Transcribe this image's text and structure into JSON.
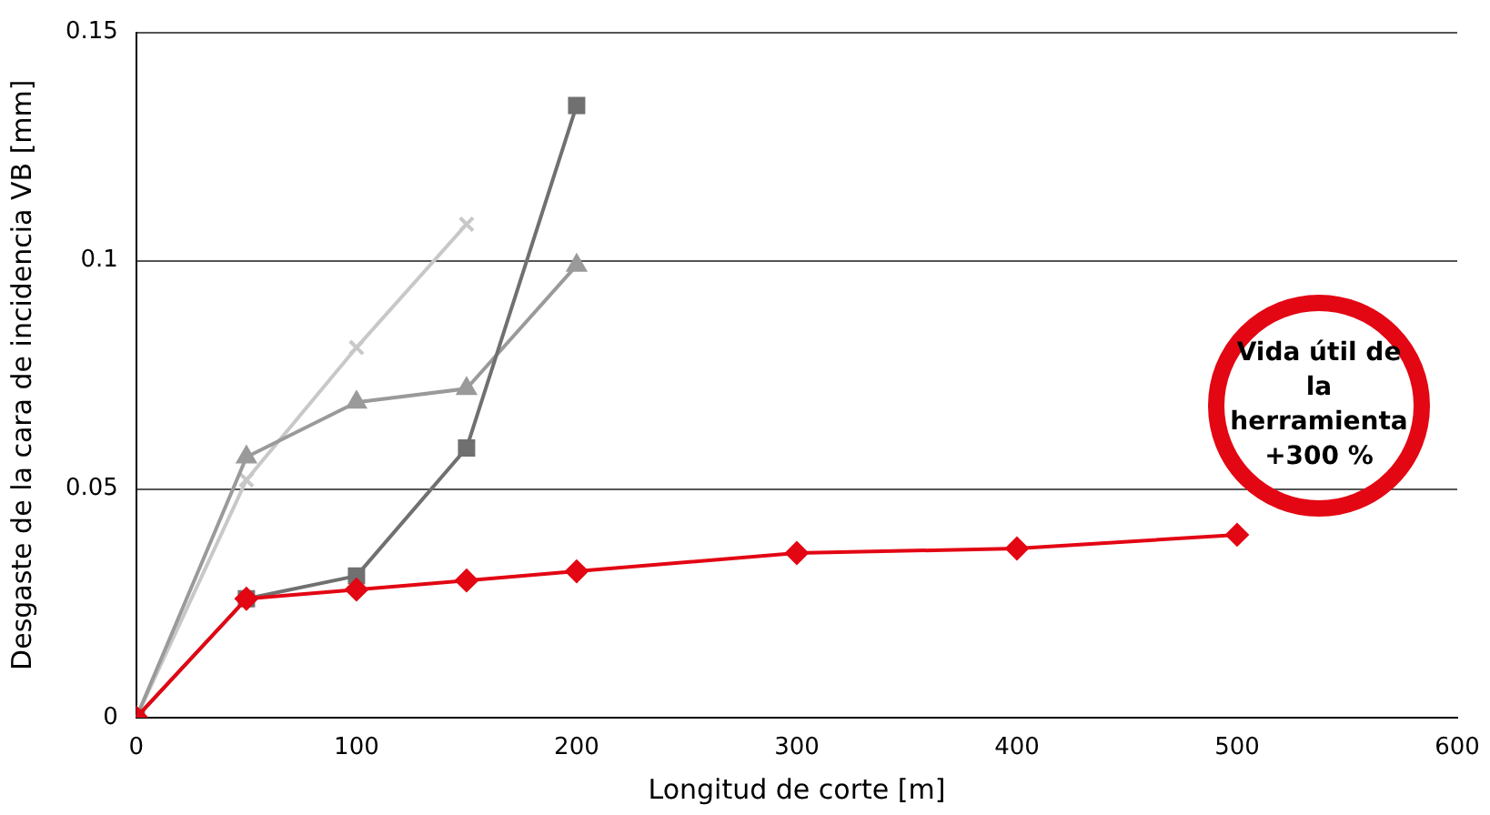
{
  "chart_data": {
    "type": "line",
    "xlabel": "Longitud de corte [m]",
    "ylabel": "Desgaste de la cara de incidencia VB [mm]",
    "xlim": [
      0,
      600
    ],
    "xticks": [
      0,
      100,
      200,
      300,
      400,
      500,
      600
    ],
    "ylim": [
      0,
      0.15
    ],
    "yticks": [
      0,
      0.05,
      0.1,
      0.15
    ],
    "grid": "y",
    "legend": false,
    "line_style": "solid",
    "annotations": [
      "Vida útil de la herramienta +300 %"
    ],
    "series": [
      {
        "color": "#c8c8c8",
        "marker": "cross",
        "x": [
          0,
          50,
          100,
          150
        ],
        "values": [
          0,
          0.052,
          0.081,
          0.108
        ]
      },
      {
        "color": "#9a9a9a",
        "marker": "triangle",
        "x": [
          0,
          50,
          100,
          150,
          200
        ],
        "values": [
          0,
          0.057,
          0.069,
          0.072,
          0.099
        ]
      },
      {
        "color": "#707070",
        "marker": "square",
        "x": [
          0,
          50,
          100,
          150,
          200
        ],
        "values": [
          0,
          0.026,
          0.031,
          0.059,
          0.134
        ]
      },
      {
        "color": "#e30613",
        "marker": "diamond",
        "x": [
          0,
          50,
          100,
          150,
          200,
          300,
          400,
          500
        ],
        "values": [
          0,
          0.026,
          0.028,
          0.03,
          0.032,
          0.036,
          0.037,
          0.04
        ]
      }
    ]
  }
}
